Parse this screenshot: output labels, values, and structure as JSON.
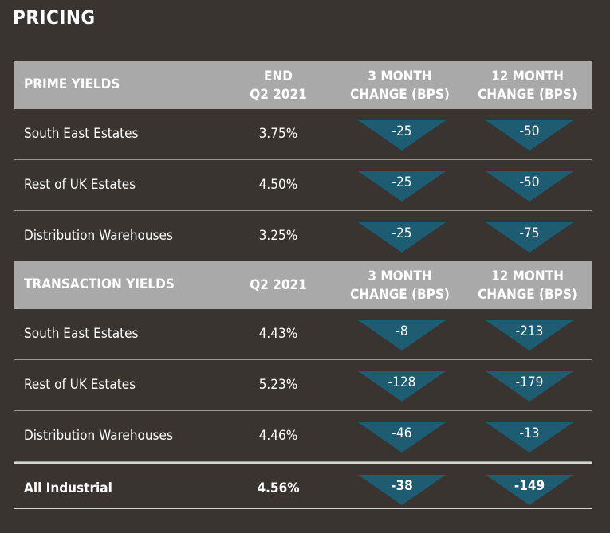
{
  "title": "PRICING",
  "colors": {
    "background": "#39342f",
    "header": "#a9a9a9",
    "arrow": "#1e5c72"
  },
  "prime": {
    "header": {
      "label": "PRIME YIELDS",
      "col2_l1": "END",
      "col2_l2": "Q2 2021",
      "col3_l1": "3 MONTH",
      "col3_l2": "CHANGE (BPS)",
      "col4_l1": "12 MONTH",
      "col4_l2": "CHANGE (BPS)"
    },
    "rows": [
      {
        "name": "South East Estates",
        "value": "3.75%",
        "m3": "-25",
        "m12": "-50"
      },
      {
        "name": "Rest of UK Estates",
        "value": "4.50%",
        "m3": "-25",
        "m12": "-50"
      },
      {
        "name": "Distribution Warehouses",
        "value": "3.25%",
        "m3": "-25",
        "m12": "-75"
      }
    ]
  },
  "transaction": {
    "header": {
      "label": "TRANSACTION YIELDS",
      "col2": "Q2 2021",
      "col3_l1": "3 MONTH",
      "col3_l2": "CHANGE (BPS)",
      "col4_l1": "12 MONTH",
      "col4_l2": "CHANGE (BPS)"
    },
    "rows": [
      {
        "name": "South East Estates",
        "value": "4.43%",
        "m3": "-8",
        "m12": "-213"
      },
      {
        "name": "Rest of UK Estates",
        "value": "5.23%",
        "m3": "-128",
        "m12": "-179"
      },
      {
        "name": "Distribution Warehouses",
        "value": "4.46%",
        "m3": "-46",
        "m12": "-13"
      }
    ]
  },
  "total": {
    "name": "All Industrial",
    "value": "4.56%",
    "m3": "-38",
    "m12": "-149"
  }
}
